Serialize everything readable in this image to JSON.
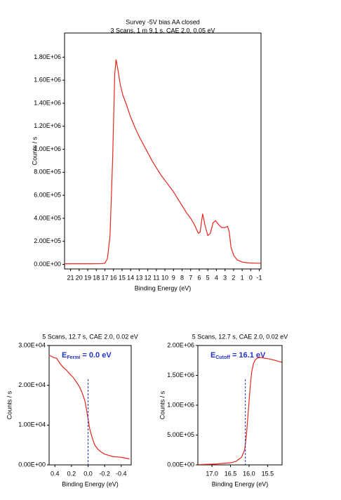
{
  "chart_data": [
    {
      "type": "line",
      "title": "Survey -5V bias AA closed",
      "subtitle": "3 Scans,  1 m 9.1 s,  CAE 2.0,  0.05 eV",
      "xlabel": "Binding Energy (eV)",
      "ylabel": "Counts / s",
      "color": "#e8261c",
      "x": [
        21.7,
        20,
        18.5,
        17.4,
        17.0,
        16.7,
        16.4,
        16.1,
        15.85,
        15.7,
        15.5,
        15.2,
        14.9,
        14.5,
        14.0,
        13.5,
        13.0,
        12.5,
        12.0,
        11.5,
        11.0,
        10.5,
        10.0,
        9.5,
        9.0,
        8.5,
        8.0,
        7.5,
        7.0,
        6.6,
        6.3,
        6.1,
        5.9,
        5.6,
        5.3,
        5.0,
        4.7,
        4.4,
        4.1,
        3.8,
        3.4,
        3.0,
        2.7,
        2.5,
        2.3,
        2.0,
        1.6,
        1.0,
        0.5,
        0,
        -0.5,
        -1.2
      ],
      "values": [
        5000,
        5000,
        5000,
        6000,
        10000,
        50000,
        250000,
        900000,
        1650000,
        1780000,
        1700000,
        1560000,
        1470000,
        1390000,
        1280000,
        1190000,
        1110000,
        1040000,
        970000,
        900000,
        840000,
        780000,
        730000,
        680000,
        630000,
        570000,
        510000,
        450000,
        400000,
        350000,
        300000,
        270000,
        280000,
        440000,
        330000,
        250000,
        270000,
        360000,
        380000,
        350000,
        320000,
        320000,
        330000,
        280000,
        150000,
        80000,
        40000,
        20000,
        15000,
        12000,
        10000,
        10000
      ],
      "xlim": [
        21.7,
        -1.2
      ],
      "ylim": [
        -40000,
        2010000
      ],
      "xticks": [
        21,
        20,
        19,
        18,
        17,
        16,
        15,
        14,
        13,
        12,
        11,
        10,
        9,
        8,
        7,
        6,
        5,
        4,
        3,
        2,
        1,
        0,
        -1
      ],
      "yticks": [
        {
          "value": 0,
          "label": "0.00E+00"
        },
        {
          "value": 200000,
          "label": "2.00E+05"
        },
        {
          "value": 400000,
          "label": "4.00E+05"
        },
        {
          "value": 600000,
          "label": "6.00E+05"
        },
        {
          "value": 800000,
          "label": "8.00E+05"
        },
        {
          "value": 1000000,
          "label": "1.00E+06"
        },
        {
          "value": 1200000,
          "label": "1.20E+06"
        },
        {
          "value": 1400000,
          "label": "1.40E+06"
        },
        {
          "value": 1600000,
          "label": "1.60E+06"
        },
        {
          "value": 1800000,
          "label": "1.80E+06"
        }
      ]
    },
    {
      "type": "line",
      "subtitle": "5 Scans,  12.7 s,  CAE 2.0, 0.02 eV",
      "xlabel": "Binding Energy (eV)",
      "ylabel": "Counts / s",
      "color": "#e8261c",
      "annotation": {
        "symbol": "E",
        "subscript": "Fermi",
        "text": "= 0.0 eV"
      },
      "marker_x": 0,
      "x": [
        0.46,
        0.42,
        0.38,
        0.34,
        0.3,
        0.26,
        0.22,
        0.18,
        0.14,
        0.1,
        0.07,
        0.04,
        0.02,
        0,
        -0.02,
        -0.05,
        -0.08,
        -0.12,
        -0.16,
        -0.2,
        -0.25,
        -0.3,
        -0.35,
        -0.4,
        -0.45,
        -0.5
      ],
      "values": [
        27500,
        27000,
        26800,
        25500,
        24500,
        23800,
        22800,
        22000,
        20800,
        19500,
        18000,
        16200,
        14000,
        11500,
        9000,
        6800,
        5000,
        3900,
        3200,
        2700,
        2400,
        2100,
        2000,
        1900,
        1700,
        1500
      ],
      "xlim": [
        0.47,
        -0.52
      ],
      "ylim": [
        0,
        30000
      ],
      "xticks": [
        0.4,
        0.2,
        {
          "value": 0,
          "label": "0.0"
        },
        -0.2,
        -0.4
      ],
      "yticks": [
        {
          "value": 0,
          "label": "0.00E+00"
        },
        {
          "value": 10000,
          "label": "1.00E+04"
        },
        {
          "value": 20000,
          "label": "2.00E+04"
        },
        {
          "value": 30000,
          "label": "3.00E+04"
        }
      ]
    },
    {
      "type": "line",
      "subtitle": "5 Scans,  12.7 s,  CAE 2.0, 0.02 eV",
      "xlabel": "Binding Energy (eV)",
      "ylabel": "Counts / s",
      "color": "#e8261c",
      "annotation": {
        "symbol": "E",
        "subscript": "Cutoff",
        "text": "= 16.1 eV"
      },
      "marker_x": 16.1,
      "x": [
        17.35,
        17.1,
        16.9,
        16.7,
        16.5,
        16.35,
        16.2,
        16.12,
        16.07,
        16.02,
        15.97,
        15.93,
        15.88,
        15.83,
        15.78,
        15.7,
        15.6,
        15.5,
        15.35,
        15.12
      ],
      "values": [
        5000,
        10000,
        15000,
        25000,
        35000,
        60000,
        130000,
        250000,
        500000,
        900000,
        1300000,
        1550000,
        1700000,
        1760000,
        1790000,
        1800000,
        1790000,
        1780000,
        1760000,
        1720000
      ],
      "xlim": [
        17.38,
        15.11
      ],
      "ylim": [
        0,
        2000000
      ],
      "xticks": [
        {
          "value": 17,
          "label": "17.0"
        },
        16.5,
        {
          "value": 16,
          "label": "16.0"
        },
        15.5
      ],
      "yticks": [
        {
          "value": 0,
          "label": "0.00E+00"
        },
        {
          "value": 500000,
          "label": "5.00E+05"
        },
        {
          "value": 1000000,
          "label": "1.00E+06"
        },
        {
          "value": 1500000,
          "label": "1.50E+06"
        },
        {
          "value": 2000000,
          "label": "2.00E+06"
        }
      ]
    }
  ]
}
